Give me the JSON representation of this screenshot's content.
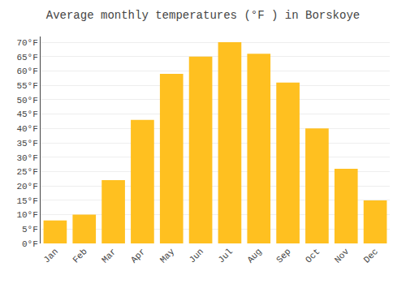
{
  "chart_data": {
    "type": "bar",
    "title": "Average monthly temperatures (°F ) in Borskoye",
    "categories": [
      "Jan",
      "Feb",
      "Mar",
      "Apr",
      "May",
      "Jun",
      "Jul",
      "Aug",
      "Sep",
      "Oct",
      "Nov",
      "Dec"
    ],
    "values": [
      8,
      10,
      22,
      43,
      59,
      65,
      70,
      66,
      56,
      40,
      26,
      15
    ],
    "color": "#FFC020",
    "ylim": [
      0,
      72
    ],
    "yticks": [
      {
        "value": 0,
        "label": "0°F"
      },
      {
        "value": 5,
        "label": "5°F"
      },
      {
        "value": 10,
        "label": "10°F"
      },
      {
        "value": 15,
        "label": "15°F"
      },
      {
        "value": 20,
        "label": "20°F"
      },
      {
        "value": 25,
        "label": "25°F"
      },
      {
        "value": 30,
        "label": "30°F"
      },
      {
        "value": 35,
        "label": "35°F"
      },
      {
        "value": 40,
        "label": "40°F"
      },
      {
        "value": 45,
        "label": "45°F"
      },
      {
        "value": 50,
        "label": "50°F"
      },
      {
        "value": 55,
        "label": "55°F"
      },
      {
        "value": 60,
        "label": "60°F"
      },
      {
        "value": 65,
        "label": "65°F"
      },
      {
        "value": 70,
        "label": "70°F"
      }
    ],
    "grid": true
  }
}
